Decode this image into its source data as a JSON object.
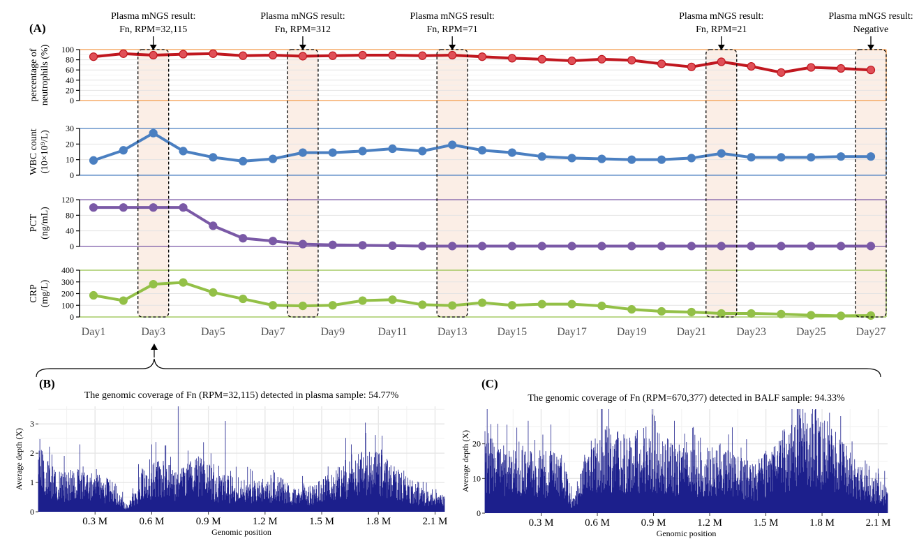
{
  "panel_labels": {
    "a": "(A)",
    "b": "(B)",
    "c": "(C)"
  },
  "chart_data": [
    {
      "type": "line",
      "panel": "A",
      "x": [
        "Day1",
        "Day2",
        "Day3",
        "Day4",
        "Day5",
        "Day6",
        "Day7",
        "Day8",
        "Day9",
        "Day10",
        "Day11",
        "Day12",
        "Day13",
        "Day14",
        "Day15",
        "Day16",
        "Day17",
        "Day18",
        "Day19",
        "Day20",
        "Day21",
        "Day22",
        "Day23",
        "Day24",
        "Day25",
        "Day26",
        "Day27"
      ],
      "x_tick_labels": [
        "Day1",
        "Day3",
        "Day5",
        "Day7",
        "Day9",
        "Day11",
        "Day13",
        "Day15",
        "Day17",
        "Day19",
        "Day21",
        "Day23",
        "Day25",
        "Day27"
      ],
      "highlight_days": [
        3,
        8,
        13,
        22,
        27
      ],
      "annotations": [
        {
          "day": 3,
          "line1": "Plasma mNGS result:",
          "line2": "Fn, RPM=32,115"
        },
        {
          "day": 8,
          "line1": "Plasma mNGS result:",
          "line2": "Fn, RPM=312"
        },
        {
          "day": 13,
          "line1": "Plasma mNGS result:",
          "line2": "Fn, RPM=71"
        },
        {
          "day": 22,
          "line1": "Plasma mNGS result:",
          "line2": "Fn, RPM=21"
        },
        {
          "day": 27,
          "line1": "Plasma mNGS result:",
          "line2": "Negative"
        }
      ],
      "series": [
        {
          "ylabel_lines": [
            "percentage of",
            "neutrophils (%)"
          ],
          "color": "#c0171f",
          "marker_fill": "#e04f57",
          "frame_color": "#f39a4a",
          "ylim": [
            0,
            100
          ],
          "yticks": [
            0,
            20,
            40,
            60,
            80,
            100
          ],
          "values": [
            86,
            92,
            89,
            91,
            92,
            88,
            89,
            87,
            88,
            89,
            89,
            88,
            89,
            86,
            83,
            81,
            78,
            81,
            79,
            72,
            66,
            76,
            67,
            55,
            65,
            63,
            60
          ]
        },
        {
          "ylabel_lines": [
            "WBC count",
            "(10×10⁹/L)"
          ],
          "color": "#4a7fc1",
          "marker_fill": "#4a7fc1",
          "frame_color": "#4a7fc1",
          "ylim": [
            0,
            30
          ],
          "yticks": [
            0,
            10,
            20,
            30
          ],
          "values": [
            9.5,
            16,
            27,
            15.5,
            11.5,
            9,
            10.5,
            14.5,
            14.5,
            15.5,
            17,
            15.5,
            19.5,
            16,
            14.5,
            12,
            11,
            10.5,
            10,
            10,
            11,
            14,
            11.5,
            11.5,
            11.5,
            12,
            12
          ]
        },
        {
          "ylabel_lines": [
            "PCT",
            "(ng/mL)"
          ],
          "color": "#7a59a6",
          "marker_fill": "#7a59a6",
          "frame_color": "#7a59a6",
          "ylim": [
            0,
            120
          ],
          "yticks": [
            0,
            40,
            80,
            120
          ],
          "values": [
            100,
            100,
            100,
            100,
            53,
            21,
            14,
            6,
            4,
            3,
            2,
            1,
            1,
            1,
            1,
            1,
            1,
            1,
            1,
            1,
            1,
            1,
            1,
            1,
            1,
            1,
            1
          ]
        },
        {
          "ylabel_lines": [
            "CRP",
            "(mg/L)"
          ],
          "color": "#93c047",
          "marker_fill": "#93c047",
          "frame_color": "#93c047",
          "ylim": [
            0,
            400
          ],
          "yticks": [
            0,
            100,
            200,
            300,
            400
          ],
          "values": [
            185,
            140,
            280,
            295,
            210,
            155,
            100,
            95,
            100,
            140,
            148,
            105,
            98,
            122,
            100,
            110,
            110,
            95,
            65,
            48,
            42,
            30,
            30,
            25,
            15,
            10,
            12
          ]
        }
      ]
    },
    {
      "type": "bar",
      "panel": "B",
      "title": "The genomic coverage of Fn (RPM=32,115) detected in plasma sample: 54.77%",
      "xlabel": "Genomic position",
      "ylabel": "Average depth (X)",
      "xlim": [
        0,
        2.15
      ],
      "ylim": [
        0,
        3.6
      ],
      "yticks": [
        0,
        1,
        2,
        3
      ],
      "xtick_labels": [
        "0.3 M",
        "0.6 M",
        "0.9 M",
        "1.2 M",
        "1.5 M",
        "1.8 M",
        "2.1 M"
      ],
      "xtick_values": [
        0.3,
        0.6,
        0.9,
        1.2,
        1.5,
        1.8,
        2.1
      ],
      "bar_color": "#1c1f8c",
      "profile": [
        {
          "x": 0.0,
          "depth": 1.6
        },
        {
          "x": 0.1,
          "depth": 0.9
        },
        {
          "x": 0.2,
          "depth": 1.0
        },
        {
          "x": 0.3,
          "depth": 0.9
        },
        {
          "x": 0.4,
          "depth": 0.7
        },
        {
          "x": 0.47,
          "depth": 0.15
        },
        {
          "x": 0.55,
          "depth": 1.0
        },
        {
          "x": 0.65,
          "depth": 1.2
        },
        {
          "x": 0.75,
          "depth": 1.0
        },
        {
          "x": 0.85,
          "depth": 1.3
        },
        {
          "x": 0.95,
          "depth": 0.9
        },
        {
          "x": 1.05,
          "depth": 0.8
        },
        {
          "x": 1.15,
          "depth": 0.7
        },
        {
          "x": 1.25,
          "depth": 0.9
        },
        {
          "x": 1.35,
          "depth": 0.6
        },
        {
          "x": 1.45,
          "depth": 0.6
        },
        {
          "x": 1.55,
          "depth": 0.9
        },
        {
          "x": 1.65,
          "depth": 1.3
        },
        {
          "x": 1.75,
          "depth": 1.5
        },
        {
          "x": 1.85,
          "depth": 1.2
        },
        {
          "x": 1.95,
          "depth": 0.8
        },
        {
          "x": 2.05,
          "depth": 0.5
        },
        {
          "x": 2.15,
          "depth": 0.4
        }
      ],
      "spikes": [
        {
          "x": 0.74,
          "depth": 3.6
        },
        {
          "x": 0.99,
          "depth": 3.1
        },
        {
          "x": 0.6,
          "depth": 2.3
        },
        {
          "x": 1.82,
          "depth": 2.6
        },
        {
          "x": 0.22,
          "depth": 2.3
        }
      ]
    },
    {
      "type": "bar",
      "panel": "C",
      "title": "The genomic coverage of Fn (RPM=670,377) detected in BALF sample: 94.33%",
      "xlabel": "Genomic position",
      "ylabel": "Average depth (X)",
      "xlim": [
        0,
        2.15
      ],
      "ylim": [
        0,
        30
      ],
      "yticks": [
        0,
        10,
        20
      ],
      "xtick_labels": [
        "0.3 M",
        "0.6 M",
        "0.9 M",
        "1.2 M",
        "1.5 M",
        "1.8 M",
        "2.1 M"
      ],
      "xtick_values": [
        0.3,
        0.6,
        0.9,
        1.2,
        1.5,
        1.8,
        2.1
      ],
      "bar_color": "#1c1f8c",
      "profile": [
        {
          "x": 0.0,
          "depth": 17
        },
        {
          "x": 0.1,
          "depth": 12
        },
        {
          "x": 0.2,
          "depth": 13
        },
        {
          "x": 0.3,
          "depth": 12
        },
        {
          "x": 0.4,
          "depth": 13
        },
        {
          "x": 0.47,
          "depth": 3
        },
        {
          "x": 0.55,
          "depth": 14
        },
        {
          "x": 0.65,
          "depth": 17
        },
        {
          "x": 0.75,
          "depth": 15
        },
        {
          "x": 0.85,
          "depth": 17
        },
        {
          "x": 0.95,
          "depth": 15
        },
        {
          "x": 1.05,
          "depth": 13
        },
        {
          "x": 1.15,
          "depth": 12
        },
        {
          "x": 1.25,
          "depth": 14
        },
        {
          "x": 1.35,
          "depth": 11
        },
        {
          "x": 1.45,
          "depth": 10
        },
        {
          "x": 1.55,
          "depth": 14
        },
        {
          "x": 1.65,
          "depth": 19
        },
        {
          "x": 1.75,
          "depth": 21
        },
        {
          "x": 1.85,
          "depth": 17
        },
        {
          "x": 1.95,
          "depth": 12
        },
        {
          "x": 2.05,
          "depth": 7
        },
        {
          "x": 2.15,
          "depth": 6
        }
      ],
      "spikes": [
        {
          "x": 1.71,
          "depth": 29
        },
        {
          "x": 1.84,
          "depth": 29
        },
        {
          "x": 0.86,
          "depth": 25
        },
        {
          "x": 0.93,
          "depth": 23
        }
      ]
    }
  ]
}
